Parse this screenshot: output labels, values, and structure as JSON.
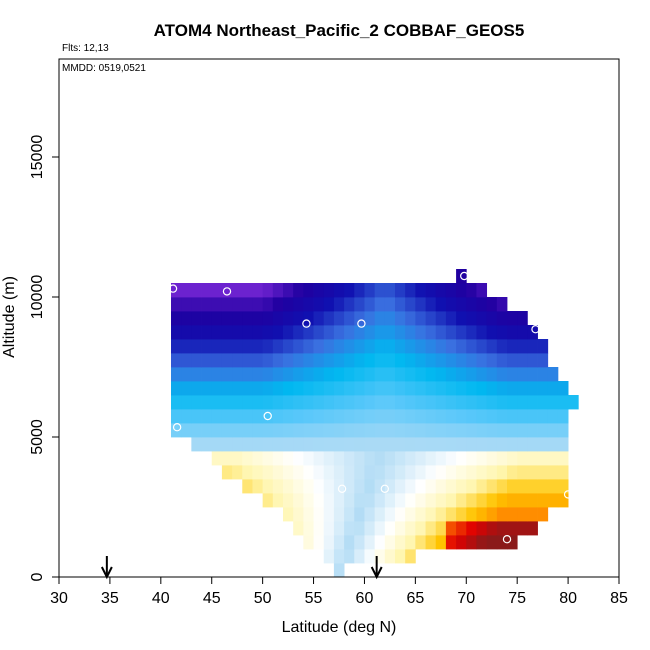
{
  "chart_data": {
    "type": "heatmap",
    "title": "ATOM4 Northeast_Pacific_2 COBBAF_GEOS5",
    "annotations": {
      "flights": "Flts: 12,13",
      "dates": "MMDD: 0519,0521"
    },
    "xlabel": "Latitude (deg N)",
    "ylabel": "Altitude (m)",
    "xlim": [
      30,
      85
    ],
    "ylim": [
      0,
      18500
    ],
    "xticks": [
      30,
      35,
      40,
      45,
      50,
      55,
      60,
      65,
      70,
      75,
      80,
      85
    ],
    "yticks": [
      0,
      5000,
      10000,
      15000
    ],
    "cell_height_m": 500,
    "cell_width_deg": 1,
    "colormap": [
      "#b2dcf5",
      "#ffffff",
      "#fff6b0",
      "#ffc400",
      "#ff7a00",
      "#e00000",
      "#8b1a1a"
    ],
    "colormap_low": [
      "#b2dcf5",
      "#5ac8fa",
      "#00b8f0",
      "#3a70e0",
      "#1010b0",
      "#2000a0",
      "#7a28d8"
    ],
    "rows": [
      {
        "alt": 250,
        "lat_min": 57,
        "lat_max": 58
      },
      {
        "alt": 750,
        "lat_min": 56,
        "lat_max": 65
      },
      {
        "alt": 1250,
        "lat_min": 54,
        "lat_max": 75
      },
      {
        "alt": 1750,
        "lat_min": 53,
        "lat_max": 77
      },
      {
        "alt": 2250,
        "lat_min": 52,
        "lat_max": 78
      },
      {
        "alt": 2750,
        "lat_min": 50,
        "lat_max": 80
      },
      {
        "alt": 3250,
        "lat_min": 48,
        "lat_max": 80
      },
      {
        "alt": 3750,
        "lat_min": 46,
        "lat_max": 80
      },
      {
        "alt": 4250,
        "lat_min": 45,
        "lat_max": 80
      },
      {
        "alt": 4750,
        "lat_min": 43,
        "lat_max": 80
      },
      {
        "alt": 5250,
        "lat_min": 41,
        "lat_max": 80
      },
      {
        "alt": 5750,
        "lat_min": 41,
        "lat_max": 80
      },
      {
        "alt": 6250,
        "lat_min": 41,
        "lat_max": 81
      },
      {
        "alt": 6750,
        "lat_min": 41,
        "lat_max": 80
      },
      {
        "alt": 7250,
        "lat_min": 41,
        "lat_max": 79
      },
      {
        "alt": 7750,
        "lat_min": 41,
        "lat_max": 78
      },
      {
        "alt": 8250,
        "lat_min": 41,
        "lat_max": 78
      },
      {
        "alt": 8750,
        "lat_min": 41,
        "lat_max": 77
      },
      {
        "alt": 9250,
        "lat_min": 41,
        "lat_max": 76
      },
      {
        "alt": 9750,
        "lat_min": 41,
        "lat_max": 74
      },
      {
        "alt": 10250,
        "lat_min": 41,
        "lat_max": 72
      },
      {
        "alt": 10750,
        "lat_min": 69,
        "lat_max": 70
      }
    ],
    "samples": [
      {
        "lat": 41.2,
        "alt": 10300
      },
      {
        "lat": 46.5,
        "alt": 10200
      },
      {
        "lat": 69.8,
        "alt": 10750
      },
      {
        "lat": 54.3,
        "alt": 9050
      },
      {
        "lat": 59.7,
        "alt": 9050
      },
      {
        "lat": 76.8,
        "alt": 8850
      },
      {
        "lat": 41.6,
        "alt": 5350
      },
      {
        "lat": 50.5,
        "alt": 5750
      },
      {
        "lat": 57.8,
        "alt": 3150
      },
      {
        "lat": 62.0,
        "alt": 3150
      },
      {
        "lat": 80.0,
        "alt": 2950
      },
      {
        "lat": 74.0,
        "alt": 1350
      }
    ],
    "flight_markers": [
      34.7,
      61.2
    ]
  }
}
